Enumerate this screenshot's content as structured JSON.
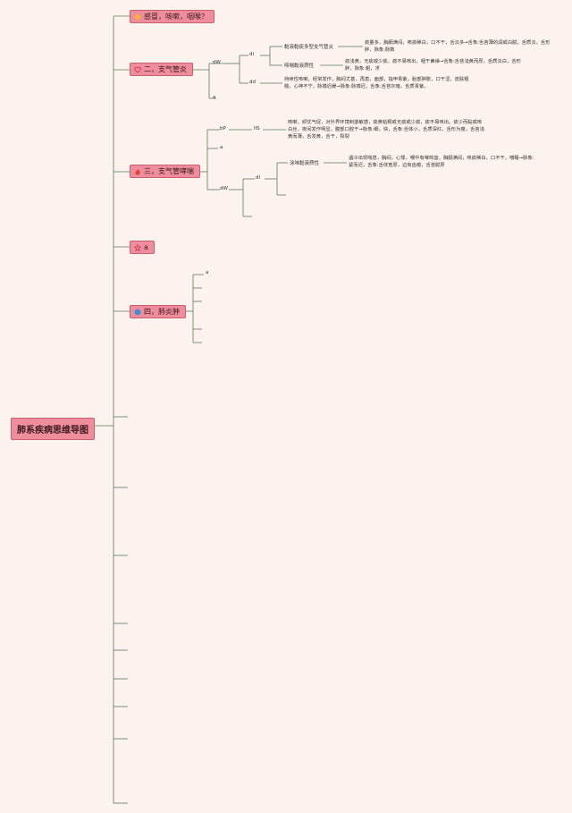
{
  "root": {
    "label": "肺系疾病思维导图"
  },
  "branches": [
    {
      "label": "感冒，咳嗽，咽喉？",
      "icon": "sun-icon",
      "color": "#f4b23c"
    },
    {
      "label": "二，支气管炎",
      "icon": "heart-outline-icon",
      "color": "#c0304a"
    },
    {
      "label": "三，支气管哮喘",
      "icon": "fire-icon",
      "color": "#e0452b"
    },
    {
      "label": "a",
      "icon": "star-outline-icon",
      "color": "#c0304a"
    },
    {
      "label": "四，肺炎肿",
      "icon": "blue-circle-icon",
      "color": "#3a8fd6"
    }
  ],
  "bronchitis": {
    "l1": [
      "dW",
      "a"
    ],
    "l2": [
      "dl",
      "dd"
    ],
    "l3": [
      "黏液黏痰多型支气管炎",
      "咳喘黏液质性"
    ],
    "desc1": "痰量多，胸膈满闷，咳痰稀白，口不干，舌淡多→舌象:舌苔薄的润或白腻，舌质淡，舌形胖，脉象:脉数",
    "desc2": "痰浅黄，无痰或少痰，痰不易咳出，咽干鼻燥→舌象:舌苔浅黄而厚，舌质淡白，舌形胖，脉象:粗，浮",
    "desc3": "持续性咳嗽，经常发作，胸闷尤甚，再患，面部，指甲青紫，胎部肿胀，口干涩，皮肤粗糙，心神不宁，脉搏迟缓→脉象:脉搏迟，舌象:舌苔灰暗，舌质青紫。"
  },
  "asthma": {
    "l1": [
      "bP",
      "a",
      "dW"
    ],
    "l2": [
      "lIS",
      "dl"
    ],
    "l3": "涂味黏液质性",
    "desc1": "咳嗽，顽忧气促，对外界环境刺激敏感，痰黄粘稠或无痰或少痰，痰不易咳出。痰少而黏或咳白丝，夜间发作明显，腹部口腔干→脉象:细，快，舌象:舌体小，舌质深红，舌形为瘦，舌苔浅黄而薄，舌发黄，舌干，裂裂",
    "desc2": "遇冷出现喘息，胸闷，心悸，喉中有哮鸣音，胸膈满闷，咳痰稀白，口不干，嗜睡→脉象:紧而迟，舌象:舌体宽厚，边有齿痕，舌苔腻厚"
  },
  "pneumonia": {
    "l1": [
      "a"
    ]
  }
}
